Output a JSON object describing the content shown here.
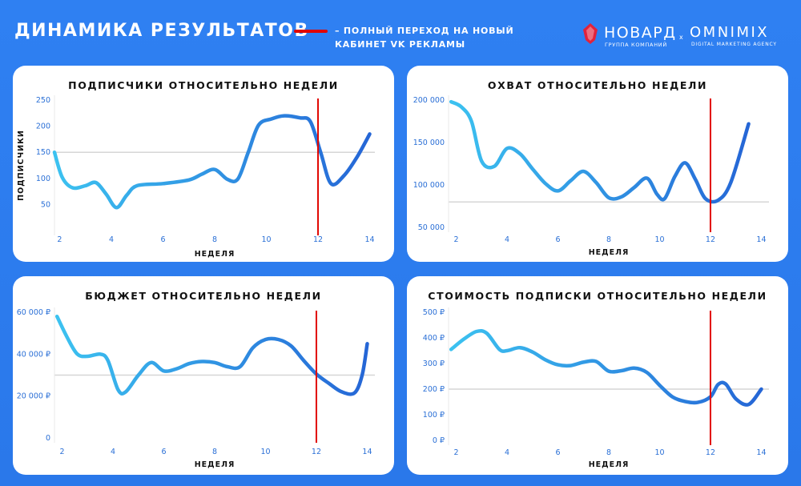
{
  "header": {
    "title": "ДИНАМИКА РЕЗУЛЬТАТОВ",
    "legend_note": "– ПОЛНЫЙ ПЕРЕХОД НА НОВЫЙ КАБИНЕТ VK РЕКЛАМЫ",
    "legend_color": "#e10600",
    "brand_left": "НОВАРД",
    "brand_left_sub": "ГРУППА КОМПАНИЙ",
    "brand_sep": "x",
    "brand_right": "OMNIMIX",
    "brand_right_sub": "DIGITAL MARKETING AGENCY"
  },
  "colors": {
    "background": "#2f80f2",
    "line_start": "#3cc2f0",
    "line_end": "#2566d6",
    "marker": "#e10600",
    "ref_line": "#d6d6d6"
  },
  "chart_data": [
    {
      "type": "line",
      "title": "ПОДПИСЧИКИ ОТНОСИТЕЛЬНО НЕДЕЛИ",
      "xlabel": "НЕДЕЛЯ",
      "ylabel": "ПОДПИСЧИКИ",
      "x_ticks": [
        2,
        4,
        6,
        8,
        10,
        12,
        14
      ],
      "y_ticks": [
        50,
        100,
        150,
        200,
        250
      ],
      "y_tick_labels": [
        "50",
        "100",
        "150",
        "200",
        "250"
      ],
      "xlim": [
        1.8,
        14.2
      ],
      "ylim": [
        0,
        250
      ],
      "reference_y": 150,
      "marker_x": 12,
      "x": [
        1.8,
        2.1,
        2.5,
        3.0,
        3.4,
        3.8,
        4.2,
        4.6,
        5.0,
        6.0,
        7.0,
        7.5,
        8.0,
        8.5,
        8.9,
        9.3,
        9.7,
        10.2,
        10.7,
        11.3,
        11.7,
        12.1,
        12.5,
        13.0,
        13.5,
        14.0
      ],
      "y": [
        150,
        102,
        82,
        86,
        92,
        70,
        44,
        68,
        86,
        90,
        97,
        108,
        117,
        98,
        99,
        150,
        202,
        214,
        220,
        216,
        209,
        150,
        90,
        105,
        140,
        185
      ]
    },
    {
      "type": "line",
      "title": "ОХВАТ ОТНОСИТЕЛЬНО НЕДЕЛИ",
      "xlabel": "НЕДЕЛЯ",
      "ylabel": "",
      "x_ticks": [
        2,
        4,
        6,
        8,
        10,
        12,
        14
      ],
      "y_ticks": [
        50000,
        100000,
        150000,
        200000
      ],
      "y_tick_labels": [
        "50 000",
        "100 000",
        "150 000",
        "200 000"
      ],
      "xlim": [
        1.7,
        14.3
      ],
      "ylim": [
        50000,
        200000
      ],
      "reference_y": 80000,
      "marker_x": 12,
      "x": [
        1.8,
        2.2,
        2.6,
        3.0,
        3.5,
        4.0,
        4.5,
        5.0,
        5.5,
        6.0,
        6.5,
        7.0,
        7.5,
        8.0,
        8.5,
        9.0,
        9.5,
        9.9,
        10.2,
        10.6,
        11.0,
        11.4,
        11.8,
        12.3,
        12.8,
        13.5
      ],
      "y": [
        198000,
        192000,
        175000,
        128000,
        122000,
        143000,
        137000,
        119000,
        102000,
        93000,
        105000,
        116000,
        103000,
        85000,
        86000,
        97000,
        108000,
        89000,
        84000,
        110000,
        126000,
        107000,
        84000,
        82000,
        103000,
        172000
      ]
    },
    {
      "type": "line",
      "title": "БЮДЖЕТ ОТНОСИТЕЛЬНО НЕДЕЛИ",
      "xlabel": "НЕДЕЛЯ",
      "ylabel": "",
      "x_ticks": [
        2,
        4,
        6,
        8,
        10,
        12,
        14
      ],
      "y_ticks": [
        0,
        20000,
        40000,
        60000
      ],
      "y_tick_labels": [
        "0",
        "20 000 ₽",
        "40 000 ₽",
        "60 000 ₽"
      ],
      "xlim": [
        1.7,
        14.3
      ],
      "ylim": [
        0,
        60000
      ],
      "reference_y": 30000,
      "marker_x": 12,
      "x": [
        1.8,
        2.2,
        2.6,
        3.0,
        3.5,
        3.8,
        4.2,
        4.5,
        5.0,
        5.5,
        6.0,
        6.5,
        7.0,
        7.5,
        8.0,
        8.5,
        9.0,
        9.5,
        10.0,
        10.5,
        11.0,
        11.5,
        12.0,
        12.5,
        13.0,
        13.5,
        13.8,
        14.0
      ],
      "y": [
        58000,
        48000,
        40000,
        39000,
        40000,
        37000,
        23000,
        22000,
        30000,
        36000,
        32000,
        33000,
        35500,
        36500,
        36000,
        34000,
        34000,
        43000,
        47000,
        47000,
        44000,
        37000,
        30500,
        26000,
        22000,
        21500,
        30000,
        45000
      ]
    },
    {
      "type": "line",
      "title": "СТОИМОСТЬ ПОДПИСКИ ОТНОСИТЕЛЬНО НЕДЕЛИ",
      "xlabel": "НЕДЕЛЯ",
      "ylabel": "",
      "x_ticks": [
        2,
        4,
        6,
        8,
        10,
        12,
        14
      ],
      "y_ticks": [
        0,
        100,
        200,
        300,
        400,
        500
      ],
      "y_tick_labels": [
        "0 ₽",
        "100 ₽",
        "200 ₽",
        "300 ₽",
        "400 ₽",
        "500 ₽"
      ],
      "xlim": [
        1.7,
        14.3
      ],
      "ylim": [
        0,
        500
      ],
      "reference_y": 200,
      "marker_x": 12,
      "x": [
        1.8,
        2.3,
        2.8,
        3.2,
        3.7,
        4.0,
        4.5,
        5.0,
        5.5,
        6.0,
        6.5,
        7.0,
        7.5,
        8.0,
        8.5,
        9.0,
        9.5,
        10.0,
        10.5,
        11.0,
        11.5,
        12.0,
        12.3,
        12.6,
        13.0,
        13.5,
        14.0
      ],
      "y": [
        355,
        395,
        425,
        418,
        355,
        350,
        362,
        345,
        315,
        295,
        292,
        305,
        308,
        270,
        272,
        282,
        265,
        215,
        170,
        152,
        148,
        170,
        218,
        220,
        162,
        140,
        200
      ]
    }
  ]
}
